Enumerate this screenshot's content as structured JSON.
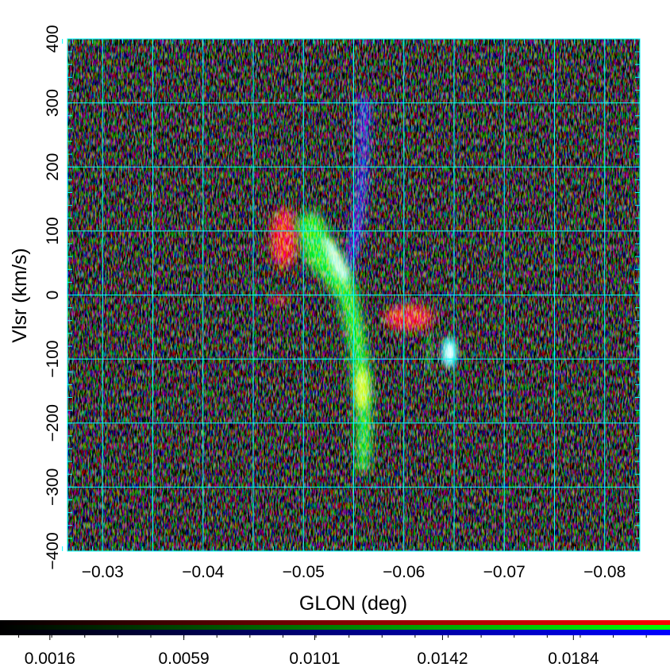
{
  "chart_data": {
    "type": "heatmap",
    "title": "",
    "xlabel": "GLON (deg)",
    "ylabel": "Vlsr (km/s)",
    "x_ticks": [
      "−0.03",
      "−0.04",
      "−0.05",
      "−0.06",
      "−0.07",
      "−0.08"
    ],
    "y_ticks": [
      "400",
      "300",
      "200",
      "100",
      "0",
      "−100",
      "−200",
      "−300",
      "−400"
    ],
    "x_tick_values": [
      -0.03,
      -0.04,
      -0.05,
      -0.06,
      -0.07,
      -0.08
    ],
    "y_tick_values": [
      400,
      300,
      200,
      100,
      0,
      -100,
      -200,
      -300,
      -400
    ],
    "xlim": [
      -0.0265,
      -0.0835
    ],
    "ylim": [
      -400,
      400
    ],
    "x_axis_reversed": true,
    "grid": true,
    "grid_color": "#00ffff",
    "background_color": "#000000",
    "colorbar": {
      "ticks": [
        "0.0016",
        "0.0059",
        "0.0101",
        "0.0142",
        "0.0184"
      ],
      "tick_values": [
        0.0016,
        0.0059,
        0.0101,
        0.0142,
        0.0184
      ],
      "range": [
        0.0,
        0.0215
      ],
      "channels": [
        {
          "channel": "red",
          "color": "#ff0000"
        },
        {
          "channel": "green",
          "color": "#00ff00"
        },
        {
          "channel": "blue",
          "color": "#0000ff"
        }
      ]
    },
    "features": [
      {
        "channel": "blue",
        "glon": -0.0565,
        "vlsr_range": [
          60,
          300
        ]
      },
      {
        "channel": "green",
        "glon_range": [
          -0.05,
          -0.057
        ],
        "vlsr_range": [
          -280,
          130
        ]
      },
      {
        "channel": "red",
        "glon": -0.049,
        "vlsr_range": [
          50,
          140
        ]
      },
      {
        "channel": "red",
        "glon_range": [
          -0.058,
          -0.063
        ],
        "vlsr_range": [
          -55,
          -15
        ]
      },
      {
        "channel": "cyan",
        "glon": -0.065,
        "vlsr_range": [
          -115,
          -70
        ]
      }
    ]
  }
}
